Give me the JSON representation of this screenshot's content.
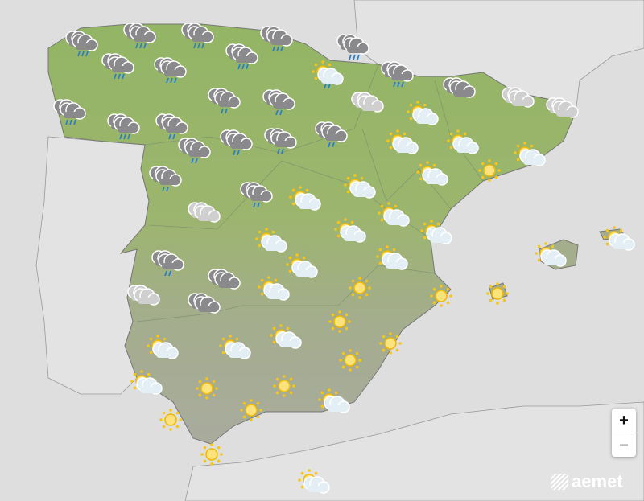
{
  "map": {
    "colors": {
      "sea": "#dedede",
      "land_north": "#93b565",
      "land_south": "#a9ab9e",
      "neighbors": "#e3e3e3"
    },
    "forecast_icons": [
      "rain",
      "rain",
      "rain",
      "rain",
      "rain",
      "rain",
      "rain",
      "rain",
      "sun-cloud-rain",
      "rain",
      "cloud-dark",
      "cloud-light",
      "cloud-light",
      "cloud-light",
      "rain-light",
      "rain-light",
      "rain",
      "rain",
      "rain-light",
      "rain-light",
      "rain-light",
      "rain-light",
      "rain-light",
      "rain-light",
      "rain-light",
      "sun-cloud",
      "sun-cloud",
      "sun-cloud",
      "sun-cloud",
      "sun-cloud",
      "sun",
      "sun-cloud",
      "sun-cloud",
      "cloud-light",
      "sun-cloud",
      "sun-cloud",
      "sun-cloud",
      "sun-cloud",
      "sun-cloud",
      "sun-cloud",
      "rain-light",
      "sun-cloud",
      "sun-cloud",
      "cloud-dark",
      "cloud-light",
      "cloud-dark",
      "sun-cloud",
      "sun",
      "sun",
      "sun",
      "sun",
      "sun-cloud",
      "sun",
      "sun-cloud",
      "sun-cloud",
      "sun",
      "sun-cloud",
      "sun",
      "sun",
      "sun-cloud",
      "sun",
      "sun",
      "sun",
      "sun-cloud"
    ]
  },
  "controls": {
    "zoom_in": "+",
    "zoom_out": "−"
  },
  "logo": {
    "text": "aemet"
  }
}
